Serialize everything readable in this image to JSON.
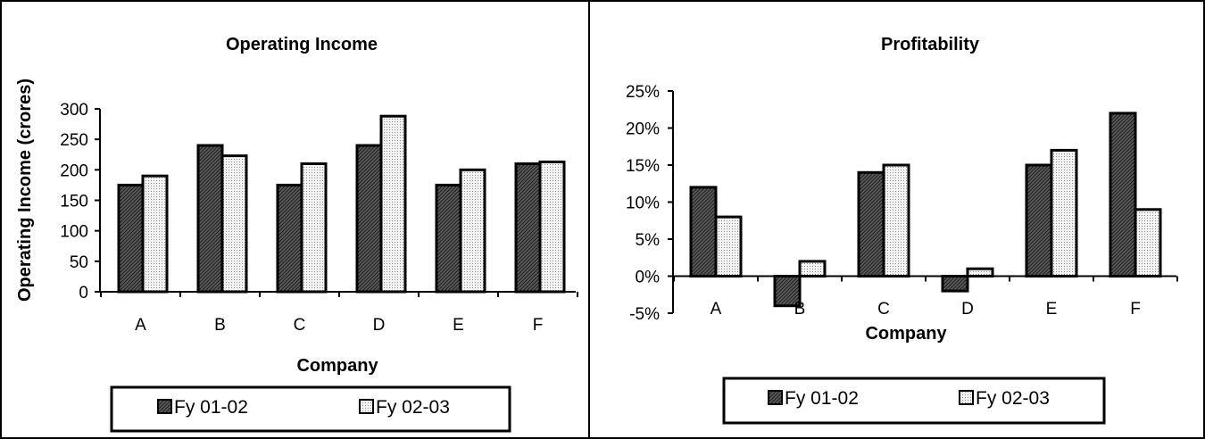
{
  "colors": {
    "series_1_fill": "#555555",
    "series_2_fill": "#f2f2f2",
    "stroke": "#000000"
  },
  "chart_data": [
    {
      "type": "bar",
      "title": "Operating Income",
      "xlabel": "Company",
      "ylabel": "Operating Income (crores)",
      "categories": [
        "A",
        "B",
        "C",
        "D",
        "E",
        "F"
      ],
      "series": [
        {
          "name": "Fy 01-02",
          "pattern": "diagonal-hatch",
          "values": [
            175,
            240,
            175,
            240,
            175,
            210
          ]
        },
        {
          "name": "Fy 02-03",
          "pattern": "dots",
          "values": [
            190,
            223,
            210,
            288,
            200,
            213
          ]
        }
      ],
      "ylim": [
        0,
        300
      ],
      "yticks": [
        0,
        50,
        100,
        150,
        200,
        250,
        300
      ],
      "ytick_labels": [
        "0",
        "50",
        "100",
        "150",
        "200",
        "250",
        "300"
      ],
      "grid": false,
      "legend_position": "bottom"
    },
    {
      "type": "bar",
      "title": "Profitability",
      "xlabel": "Company",
      "ylabel": "",
      "categories": [
        "A",
        "B",
        "C",
        "D",
        "E",
        "F"
      ],
      "series": [
        {
          "name": "Fy 01-02",
          "pattern": "diagonal-hatch",
          "values": [
            12,
            -4,
            14,
            -2,
            15,
            22
          ]
        },
        {
          "name": "Fy 02-03",
          "pattern": "dots",
          "values": [
            8,
            2,
            15,
            1,
            17,
            9
          ]
        }
      ],
      "ylim": [
        -5,
        25
      ],
      "yticks": [
        -5,
        0,
        5,
        10,
        15,
        20,
        25
      ],
      "ytick_labels": [
        "-5%",
        "0%",
        "5%",
        "10%",
        "15%",
        "20%",
        "25%"
      ],
      "grid": false,
      "legend_position": "bottom"
    }
  ]
}
